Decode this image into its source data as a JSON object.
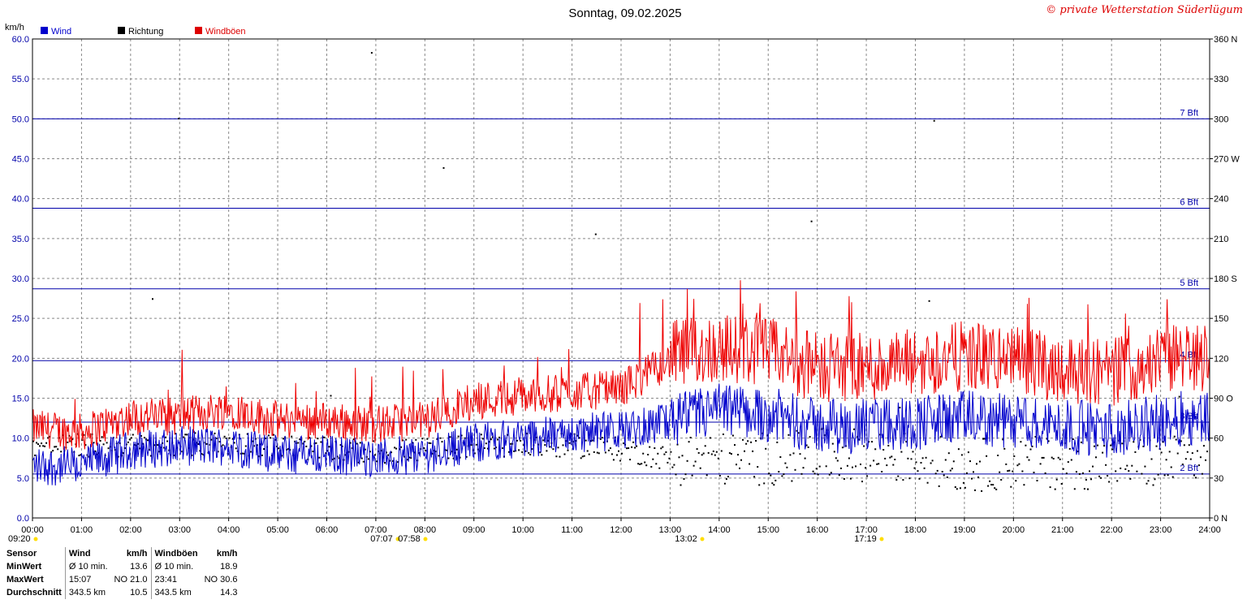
{
  "title": "Sonntag, 09.02.2025",
  "copyright": "© private Wetterstation Süderlügum",
  "y_left_unit": "km/h",
  "legend": [
    {
      "label": "Wind",
      "color": "#0000cc"
    },
    {
      "label": "Richtung",
      "color": "#000000"
    },
    {
      "label": "Windböen",
      "color": "#dd0000"
    }
  ],
  "colors": {
    "wind": "#0000cc",
    "gust": "#ee0000",
    "direction": "#000000",
    "grid": "#888888",
    "bft": "#0000aa"
  },
  "chart_data": {
    "type": "line",
    "title": "Sonntag, 09.02.2025",
    "xlabel": "",
    "ylabel": "km/h",
    "x_ticks": [
      "00:00",
      "01:00",
      "02:00",
      "03:00",
      "04:00",
      "05:00",
      "06:00",
      "07:00",
      "08:00",
      "09:00",
      "10:00",
      "11:00",
      "12:00",
      "13:00",
      "14:00",
      "15:00",
      "16:00",
      "17:00",
      "18:00",
      "19:00",
      "20:00",
      "21:00",
      "22:00",
      "23:00",
      "24:00"
    ],
    "xlim_hours": [
      0,
      24
    ],
    "ylim": [
      0,
      60
    ],
    "y_ticks": [
      "0.0",
      "5.0",
      "10.0",
      "15.0",
      "20.0",
      "25.0",
      "30.0",
      "35.0",
      "40.0",
      "45.0",
      "50.0",
      "55.0",
      "60.0"
    ],
    "y2_ticks": [
      "0  N",
      "30",
      "60",
      "90  O",
      "120",
      "150",
      "180  S",
      "210",
      "240",
      "270  W",
      "300",
      "330",
      "360  N"
    ],
    "y2lim": [
      0,
      360
    ],
    "grid": true,
    "legend_position": "top-left",
    "bft_lines": [
      {
        "label": "2 Bft",
        "value": 5.5
      },
      {
        "label": "3 Bft",
        "value": 12.0
      },
      {
        "label": "4 Bft",
        "value": 19.7
      },
      {
        "label": "5 Bft",
        "value": 28.7
      },
      {
        "label": "6 Bft",
        "value": 38.8
      },
      {
        "label": "7 Bft",
        "value": 50.0
      }
    ],
    "series": [
      {
        "name": "Wind",
        "hours": [
          0,
          1,
          2,
          3,
          4,
          5,
          6,
          7,
          8,
          9,
          10,
          11,
          12,
          13,
          14,
          15,
          16,
          17,
          18,
          19,
          20,
          21,
          22,
          23,
          24
        ],
        "values": [
          6.5,
          6.5,
          8.5,
          9.0,
          9.0,
          8.0,
          8.0,
          7.5,
          8.0,
          9.5,
          10.0,
          10.5,
          11.0,
          12.0,
          13.5,
          13.0,
          11.5,
          11.5,
          12.0,
          12.5,
          12.0,
          11.5,
          11.0,
          12.0,
          13.0
        ]
      },
      {
        "name": "Windböen",
        "hours": [
          0,
          1,
          2,
          3,
          4,
          5,
          6,
          7,
          8,
          9,
          10,
          11,
          12,
          13,
          14,
          15,
          16,
          17,
          18,
          19,
          20,
          21,
          22,
          23,
          24
        ],
        "values": [
          10.5,
          10.0,
          12.0,
          12.0,
          13.0,
          11.5,
          11.5,
          11.0,
          11.5,
          14.0,
          14.5,
          15.0,
          15.5,
          19.0,
          20.0,
          19.5,
          17.5,
          17.5,
          18.0,
          19.0,
          18.5,
          17.5,
          17.0,
          18.5,
          19.0
        ]
      },
      {
        "name": "Richtung",
        "hours": [
          0,
          1,
          2,
          3,
          4,
          5,
          6,
          7,
          8,
          9,
          10,
          11,
          12,
          13,
          14,
          15,
          16,
          17,
          18,
          19,
          20,
          21,
          22,
          23,
          24
        ],
        "values": [
          55,
          55,
          55,
          55,
          57,
          55,
          52,
          50,
          52,
          55,
          55,
          55,
          52,
          45,
          45,
          45,
          48,
          48,
          45,
          40,
          42,
          42,
          42,
          42,
          45
        ]
      }
    ]
  },
  "sun_markers": [
    "09:20",
    "07:07",
    "07:58",
    "13:02",
    "17:19"
  ],
  "table": {
    "headers": [
      "Sensor",
      "Wind",
      "km/h",
      "Windböen",
      "km/h"
    ],
    "rows": [
      {
        "label": "MinWert",
        "c1": "Ø 10 min.",
        "c2": "13.6",
        "c3": "Ø 10 min.",
        "c4": "18.9"
      },
      {
        "label": "MaxWert",
        "c1": "15:07",
        "c2": "NO 21.0",
        "c3": "23:41",
        "c4": "NO 30.6"
      },
      {
        "label": "Durchschnitt",
        "c1": "343.5 km",
        "c2": "10.5",
        "c3": "343.5 km",
        "c4": "14.3"
      }
    ]
  }
}
